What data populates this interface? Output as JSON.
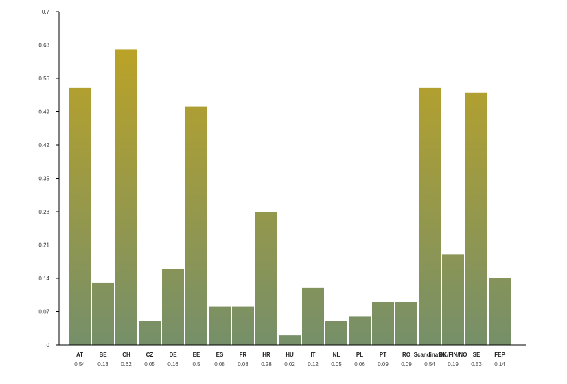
{
  "chart_data": {
    "type": "bar",
    "title": "",
    "xlabel": "",
    "ylabel": "",
    "categories": [
      "AT",
      "BE",
      "CH",
      "CZ",
      "DE",
      "EE",
      "ES",
      "FR",
      "HR",
      "HU",
      "IT",
      "NL",
      "PL",
      "PT",
      "RO",
      "Scandinavia",
      "DK/FIN/NO",
      "SE",
      "FEP"
    ],
    "values": [
      0.54,
      0.13,
      0.62,
      0.05,
      0.16,
      0.5,
      0.08,
      0.08,
      0.28,
      0.02,
      0.12,
      0.05,
      0.06,
      0.09,
      0.09,
      0.54,
      0.19,
      0.53,
      0.14
    ],
    "value_labels": [
      "0.54",
      "0.13",
      "0.62",
      "0.05",
      "0.16",
      "0.5",
      "0.08",
      "0.08",
      "0.28",
      "0.02",
      "0.12",
      "0.05",
      "0.06",
      "0.09",
      "0.09",
      "0.54",
      "0.19",
      "0.53",
      "0.14"
    ],
    "ylim": [
      0,
      0.7
    ],
    "yticks": [
      "0",
      "0.07",
      "0.14",
      "0.21",
      "0.28",
      "0.35",
      "0.42",
      "0.49",
      "0.56",
      "0.63",
      "0.7"
    ],
    "grid": false,
    "colors": {
      "bar_top": "#c3a51f",
      "bar_bottom": "#768f69",
      "axis": "#000000"
    }
  }
}
